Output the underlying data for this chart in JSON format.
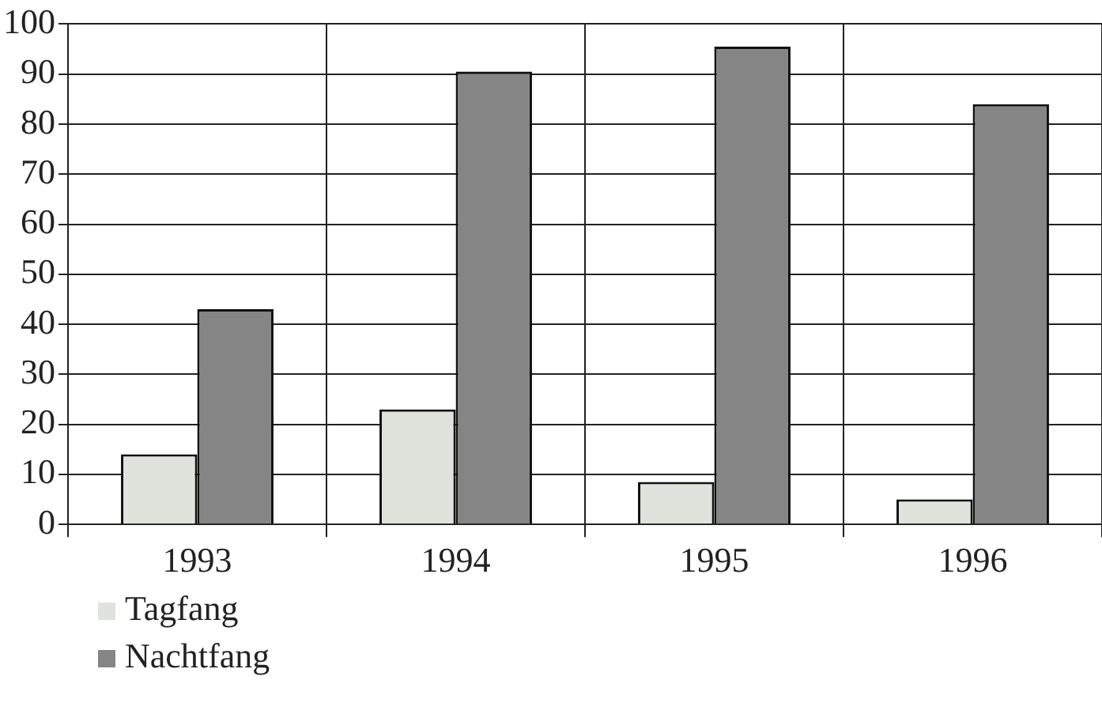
{
  "chart_data": {
    "type": "bar",
    "categories": [
      "1993",
      "1994",
      "1995",
      "1996"
    ],
    "series": [
      {
        "name": "Tagfang",
        "color": "#dfe3dc",
        "values": [
          14,
          23,
          8.5,
          5
        ]
      },
      {
        "name": "Nachtfang",
        "color": "#858585",
        "values": [
          43,
          90.5,
          95.5,
          84
        ]
      }
    ],
    "ylim": [
      0,
      100
    ],
    "yticks": [
      0,
      10,
      20,
      30,
      40,
      50,
      60,
      70,
      80,
      90,
      100
    ],
    "grid": true,
    "legend": "bottom left"
  }
}
